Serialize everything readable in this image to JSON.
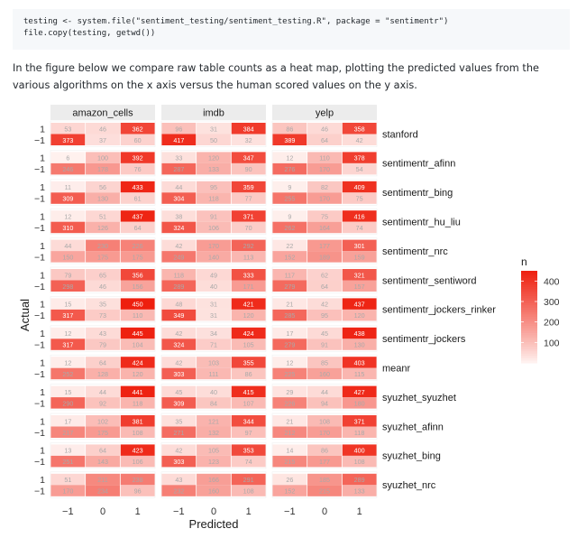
{
  "code": {
    "line1": "testing <- system.file(\"sentiment_testing/sentiment_testing.R\", package = \"sentimentr\")",
    "line2": "file.copy(testing, getwd())"
  },
  "description": "In the figure below we compare raw table counts as a heat map, plotting the predicted values from the various algorithms on the x axis versus the human scored values on the y axis.",
  "colors": {
    "low": "#fff5f3",
    "high": "#ee1f0e",
    "strip": "#ececec",
    "panel": "#ffffff",
    "text": "#333333"
  },
  "chart_data": {
    "type": "heatmap",
    "xlabel": "Predicted",
    "ylabel": "Actual",
    "x_levels": [
      "−1",
      "0",
      "1"
    ],
    "y_levels": [
      "1",
      "−1"
    ],
    "columns": [
      "amazon_cells",
      "imdb",
      "yelp"
    ],
    "legend": {
      "title": "n",
      "breaks": [
        100,
        200,
        300,
        400
      ],
      "position": "right"
    },
    "scale": {
      "min": 0,
      "max": 450
    },
    "rows": [
      {
        "name": "stanford",
        "cells": {
          "amazon_cells": [
            [
              53,
              46,
              362
            ],
            [
              373,
              37,
              60
            ]
          ],
          "imdb": [
            [
              96,
              31,
              384
            ],
            [
              417,
              50,
              32
            ]
          ],
          "yelp": [
            [
              86,
              46,
              358
            ],
            [
              389,
              64,
              42
            ]
          ]
        }
      },
      {
        "name": "sentimentr_afinn",
        "cells": {
          "amazon_cells": [
            [
              6,
              100,
              392
            ],
            [
              246,
              178,
              76
            ]
          ],
          "imdb": [
            [
              33,
              120,
              347
            ],
            [
              287,
              133,
              90
            ]
          ],
          "yelp": [
            [
              12,
              110,
              378
            ],
            [
              276,
              170,
              54
            ]
          ]
        }
      },
      {
        "name": "sentimentr_bing",
        "cells": {
          "amazon_cells": [
            [
              11,
              56,
              433
            ],
            [
              309,
              130,
              61
            ]
          ],
          "imdb": [
            [
              44,
              95,
              359
            ],
            [
              304,
              118,
              77
            ]
          ],
          "yelp": [
            [
              9,
              82,
              409
            ],
            [
              255,
              170,
              75
            ]
          ]
        }
      },
      {
        "name": "sentimentr_hu_liu",
        "cells": {
          "amazon_cells": [
            [
              12,
              51,
              437
            ],
            [
              310,
              126,
              64
            ]
          ],
          "imdb": [
            [
              38,
              91,
              371
            ],
            [
              324,
              106,
              70
            ]
          ],
          "yelp": [
            [
              9,
              75,
              416
            ],
            [
              262,
              164,
              74
            ]
          ]
        }
      },
      {
        "name": "sentimentr_nrc",
        "cells": {
          "amazon_cells": [
            [
              44,
              230,
              226
            ],
            [
              150,
              175,
              175
            ]
          ],
          "imdb": [
            [
              42,
              170,
              292
            ],
            [
              249,
              140,
              113
            ]
          ],
          "yelp": [
            [
              22,
              177,
              301
            ],
            [
              152,
              189,
              159
            ]
          ]
        }
      },
      {
        "name": "sentimentr_sentiword",
        "cells": {
          "amazon_cells": [
            [
              79,
              65,
              356
            ],
            [
              298,
              46,
              156
            ]
          ],
          "imdb": [
            [
              118,
              49,
              333
            ],
            [
              289,
              40,
              171
            ]
          ],
          "yelp": [
            [
              117,
              62,
              321
            ],
            [
              279,
              64,
              157
            ]
          ]
        }
      },
      {
        "name": "sentimentr_jockers_rinker",
        "cells": {
          "amazon_cells": [
            [
              15,
              35,
              450
            ],
            [
              317,
              73,
              110
            ]
          ],
          "imdb": [
            [
              48,
              31,
              421
            ],
            [
              349,
              31,
              120
            ]
          ],
          "yelp": [
            [
              21,
              42,
              437
            ],
            [
              285,
              95,
              120
            ]
          ]
        }
      },
      {
        "name": "sentimentr_jockers",
        "cells": {
          "amazon_cells": [
            [
              12,
              43,
              445
            ],
            [
              317,
              79,
              104
            ]
          ],
          "imdb": [
            [
              42,
              34,
              424
            ],
            [
              324,
              71,
              105
            ]
          ],
          "yelp": [
            [
              17,
              45,
              438
            ],
            [
              279,
              91,
              130
            ]
          ]
        }
      },
      {
        "name": "meanr",
        "cells": {
          "amazon_cells": [
            [
              12,
              64,
              424
            ],
            [
              252,
              128,
              120
            ]
          ],
          "imdb": [
            [
              42,
              103,
              355
            ],
            [
              303,
              111,
              86
            ]
          ],
          "yelp": [
            [
              12,
              85,
              403
            ],
            [
              225,
              160,
              115
            ]
          ]
        }
      },
      {
        "name": "syuzhet_syuzhet",
        "cells": {
          "amazon_cells": [
            [
              15,
              44,
              441
            ],
            [
              290,
              92,
              118
            ]
          ],
          "imdb": [
            [
              45,
              40,
              415
            ],
            [
              309,
              84,
              107
            ]
          ],
          "yelp": [
            [
              29,
              44,
              427
            ],
            [
              226,
              94,
              180
            ]
          ]
        }
      },
      {
        "name": "syuzhet_afinn",
        "cells": {
          "amazon_cells": [
            [
              17,
              102,
              381
            ],
            [
              217,
              175,
              108
            ]
          ],
          "imdb": [
            [
              35,
              121,
              344
            ],
            [
              271,
              132,
              97
            ]
          ],
          "yelp": [
            [
              21,
              108,
              371
            ],
            [
              212,
              170,
              118
            ]
          ]
        }
      },
      {
        "name": "syuzhet_bing",
        "cells": {
          "amazon_cells": [
            [
              13,
              64,
              423
            ],
            [
              251,
              143,
              106
            ]
          ],
          "imdb": [
            [
              42,
              105,
              353
            ],
            [
              303,
              123,
              74
            ]
          ],
          "yelp": [
            [
              14,
              86,
              400
            ],
            [
              215,
              177,
              108
            ]
          ]
        }
      },
      {
        "name": "syuzhet_nrc",
        "cells": {
          "amazon_cells": [
            [
              51,
              211,
              238
            ],
            [
              170,
              234,
              96
            ]
          ],
          "imdb": [
            [
              43,
              166,
              291
            ],
            [
              232,
              160,
              108
            ]
          ],
          "yelp": [
            [
              26,
              185,
              289
            ],
            [
              152,
              215,
              133
            ]
          ]
        }
      }
    ]
  }
}
